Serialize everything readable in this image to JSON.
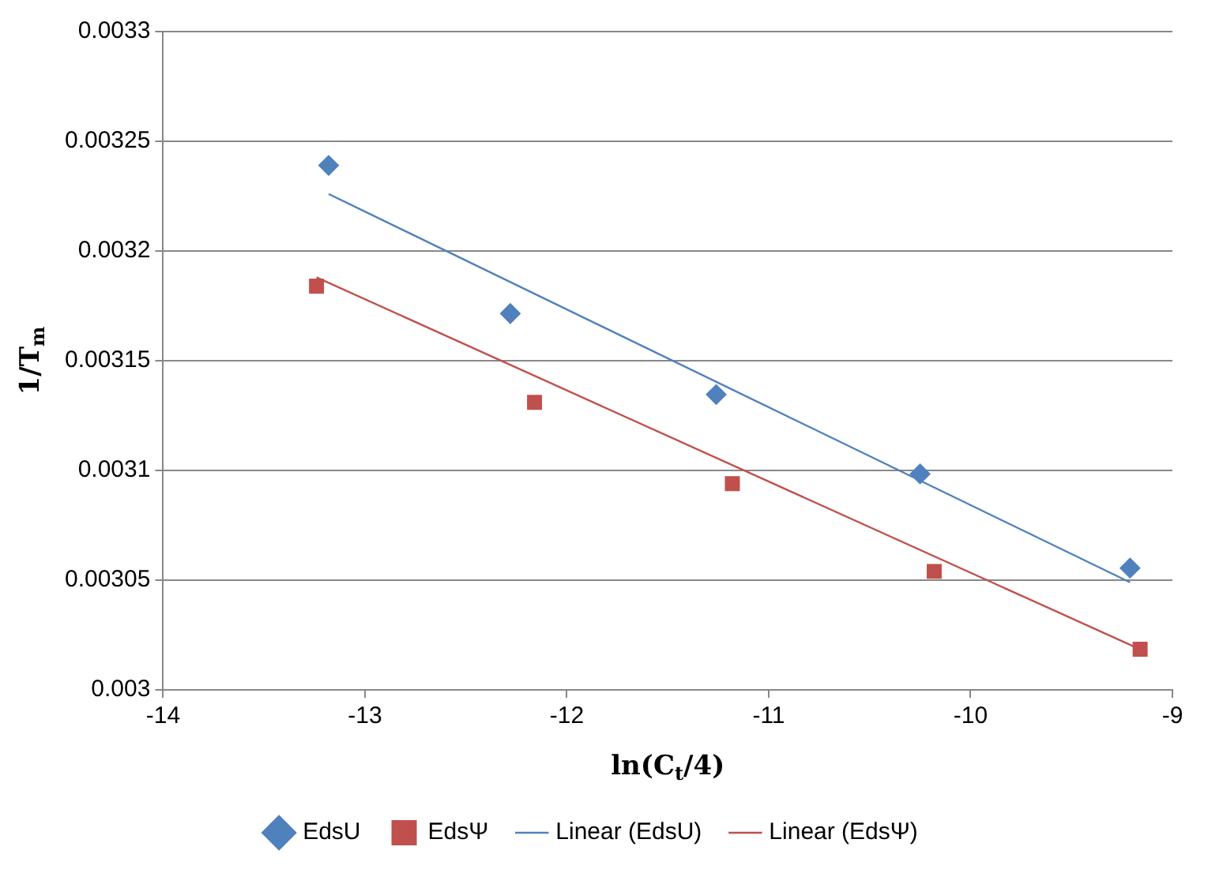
{
  "chart_data": {
    "type": "scatter",
    "xlabel": "ln(C$_{t}$/4)",
    "ylabel": "1/T$_{m}$",
    "xlim": [
      -14,
      -9
    ],
    "xticks": [
      -14,
      -13,
      -12,
      -11,
      -10,
      -9
    ],
    "ylim": [
      0.003,
      0.0033
    ],
    "yticks": [
      0.003,
      0.00305,
      0.0031,
      0.00315,
      0.0032,
      0.00325,
      0.0033
    ],
    "grid": "y",
    "legend": "bottom",
    "series": [
      {
        "name": "EdsU",
        "color": "#4f81bd",
        "marker": "diamond",
        "x": [
          -13.18,
          -12.28,
          -11.26,
          -10.25,
          -9.21
        ],
        "values": [
          0.003239,
          0.0031715,
          0.0031346,
          0.0030984,
          0.0030555
        ]
      },
      {
        "name": "EdsΨ",
        "color": "#c0504d",
        "marker": "square",
        "x": [
          -13.24,
          -12.16,
          -11.18,
          -10.18,
          -9.16
        ],
        "values": [
          0.003184,
          0.003131,
          0.003094,
          0.003054,
          0.0030185
        ]
      },
      {
        "name": "Linear (EdsU)",
        "type": "line",
        "color": "#4f81bd",
        "marker": "none",
        "x": [
          -13.18,
          -9.21
        ],
        "values": [
          0.003226,
          0.003049
        ]
      },
      {
        "name": "Linear (EdsΨ)",
        "type": "line",
        "color": "#c0504d",
        "marker": "none",
        "x": [
          -13.24,
          -9.16
        ],
        "values": [
          0.003188,
          0.0030185
        ]
      }
    ]
  }
}
